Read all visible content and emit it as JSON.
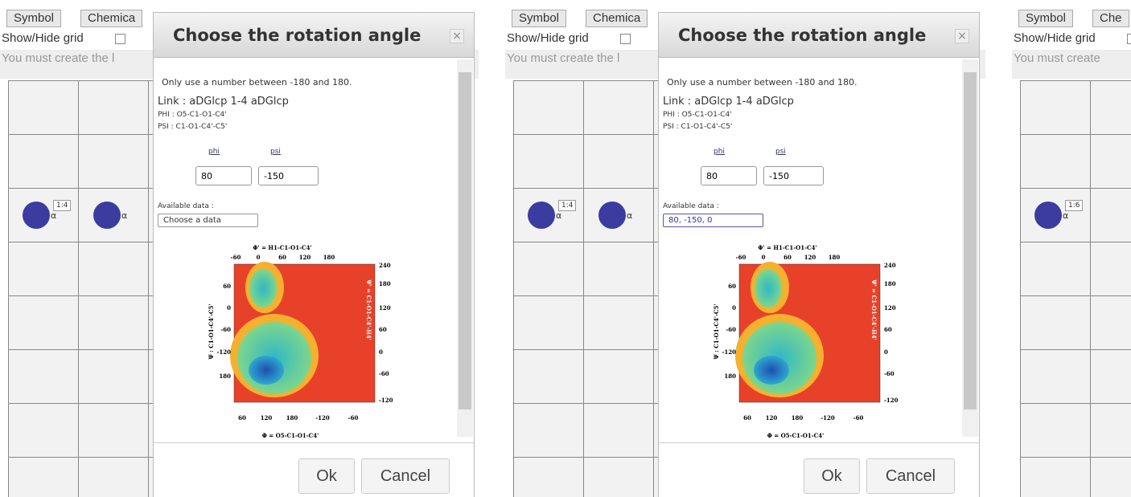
{
  "panels": [
    {
      "tabs": [
        "Symbol",
        "Chemica"
      ],
      "grid_toggle": "Show/Hide grid",
      "message": "You must create the l",
      "link_badge": "1:4",
      "residue_labels": [
        "α",
        "α"
      ],
      "dialog": {
        "title": "Choose the rotation angle",
        "close": "×",
        "instruction": "Only use a number between -180 and 180.",
        "link": "Link : aDGlcp 1-4 aDGlcp",
        "phi_def": "PHI : O5-C1-O1-C4'",
        "psi_def": "PSI : C1-O1-C4'-C5'",
        "phi_label": "phi",
        "psi_label": "psi",
        "phi_value": "80",
        "psi_value": "-150",
        "available_label": "Available data :",
        "select": "Choose a data",
        "plot": {
          "top_title": "Φ' = H1-C1-O1-C4'",
          "top_ticks": [
            -60,
            0,
            60,
            120,
            180
          ],
          "bottom_ticks": [
            60,
            120,
            180,
            -120,
            -60
          ],
          "bottom_title": "Φ = O5-C1-O1-C4'",
          "left_ticks": [
            60,
            0,
            -60,
            -120,
            180
          ],
          "left_title": "Ψ : C1-O1-C4'-C5'",
          "right_ticks": [
            240,
            180,
            120,
            60,
            0,
            -60,
            -120
          ],
          "right_title": "Ψ' = C1-O1-C4'-H4'"
        },
        "ok": "Ok",
        "cancel": "Cancel"
      }
    },
    {
      "tabs": [
        "Symbol",
        "Chemica"
      ],
      "grid_toggle": "Show/Hide grid",
      "message": "You must create the l",
      "link_badge": "1:4",
      "residue_labels": [
        "α",
        "α"
      ],
      "dialog": {
        "title": "Choose the rotation angle",
        "close": "×",
        "instruction": "Only use a number between -180 and 180.",
        "link": "Link : aDGlcp 1-4 aDGlcp",
        "phi_def": "PHI : O5-C1-O1-C4'",
        "psi_def": "PSI : C1-O1-C4'-C5'",
        "phi_label": "phi",
        "psi_label": "psi",
        "phi_value": "80",
        "psi_value": "-150",
        "available_label": "Available data :",
        "select": "80, -150, 0",
        "plot": {
          "top_title": "Φ' = H1-C1-O1-C4'",
          "top_ticks": [
            -60,
            0,
            60,
            120,
            180
          ],
          "bottom_ticks": [
            60,
            120,
            180,
            -120,
            -60
          ],
          "bottom_title": "Φ = O5-C1-O1-C4'",
          "left_ticks": [
            60,
            0,
            -60,
            -120,
            180
          ],
          "left_title": "Ψ : C1-O1-C4'-C5'",
          "right_ticks": [
            240,
            180,
            120,
            60,
            0,
            -60,
            -120
          ],
          "right_title": "Ψ' = C1-O1-C4'-H4'"
        },
        "ok": "Ok",
        "cancel": "Cancel"
      }
    },
    {
      "tabs": [
        "Symbol",
        "Che"
      ],
      "grid_toggle": "Show/Hide grid",
      "message": "You must create",
      "link_badge": "1:6",
      "residue_labels": [
        "α"
      ]
    }
  ]
}
